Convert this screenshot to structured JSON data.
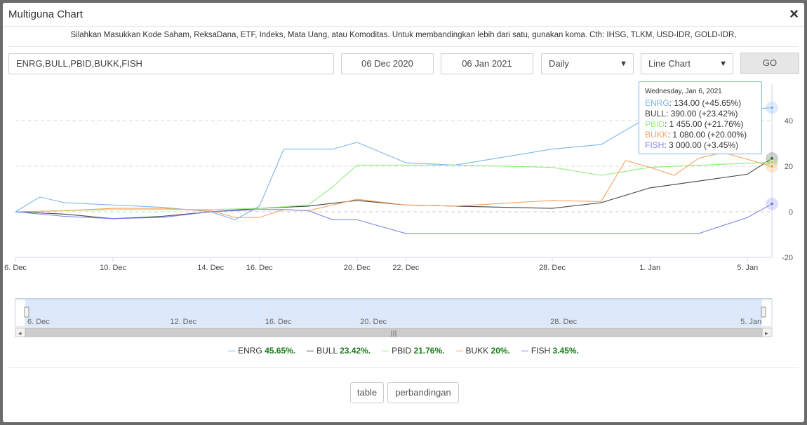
{
  "window": {
    "title": "Multiguna Chart",
    "close_icon": "×"
  },
  "instructions": "Silahkan Masukkan Kode Saham, ReksaDana, ETF, Indeks, Mata Uang, atau Komoditas. Untuk membandingkan lebih dari satu, gunakan koma. Cth: IHSG, TLKM, USD-IDR, GOLD-IDR,",
  "form": {
    "codes": "ENRG,BULL,PBID,BUKK,FISH",
    "from_date": "06 Dec 2020",
    "to_date": "06 Jan 2021",
    "period": "Daily",
    "chart_type": "Line Chart",
    "go_label": "GO"
  },
  "chart_data": {
    "type": "line",
    "x": [
      "2020-12-06",
      "2020-12-07",
      "2020-12-08",
      "2020-12-09",
      "2020-12-10",
      "2020-12-11",
      "2020-12-12",
      "2020-12-13",
      "2020-12-14",
      "2020-12-15",
      "2020-12-16",
      "2020-12-17",
      "2020-12-18",
      "2020-12-19",
      "2020-12-20",
      "2020-12-21",
      "2020-12-22",
      "2020-12-23",
      "2020-12-24",
      "2020-12-25",
      "2020-12-26",
      "2020-12-27",
      "2020-12-28",
      "2020-12-29",
      "2020-12-30",
      "2020-12-31",
      "2021-01-01",
      "2021-01-02",
      "2021-01-03",
      "2021-01-04",
      "2021-01-05",
      "2021-01-06"
    ],
    "x_ticks": [
      {
        "date": "2020-12-06",
        "label": "6. Dec"
      },
      {
        "date": "2020-12-10",
        "label": "10. Dec"
      },
      {
        "date": "2020-12-14",
        "label": "14. Dec"
      },
      {
        "date": "2020-12-16",
        "label": "16. Dec"
      },
      {
        "date": "2020-12-20",
        "label": "20. Dec"
      },
      {
        "date": "2020-12-22",
        "label": "22. Dec"
      },
      {
        "date": "2020-12-28",
        "label": "28. Dec"
      },
      {
        "date": "2021-01-01",
        "label": "1. Jan"
      },
      {
        "date": "2021-01-05",
        "label": "5. Jan"
      }
    ],
    "y_ticks": [
      40,
      20,
      0,
      -20
    ],
    "ylim": [
      -20,
      50
    ],
    "grid": true,
    "series": [
      {
        "name": "ENRG",
        "color": "#7cb5ec",
        "pct": "45.65%.",
        "points": [
          [
            "2020-12-06",
            0
          ],
          [
            "2020-12-07",
            6.5
          ],
          [
            "2020-12-08",
            4
          ],
          [
            "2020-12-10",
            3
          ],
          [
            "2020-12-12",
            2
          ],
          [
            "2020-12-14",
            0
          ],
          [
            "2020-12-15",
            -3.5
          ],
          [
            "2020-12-16",
            2.5
          ],
          [
            "2020-12-17",
            27.5
          ],
          [
            "2020-12-19",
            27.5
          ],
          [
            "2020-12-20",
            30.5
          ],
          [
            "2020-12-22",
            21.5
          ],
          [
            "2020-12-24",
            20.5
          ],
          [
            "2020-12-28",
            27.5
          ],
          [
            "2020-12-30",
            29.5
          ],
          [
            "2021-01-01",
            42
          ],
          [
            "2021-01-06",
            45.65
          ]
        ]
      },
      {
        "name": "BULL",
        "color": "#434348",
        "pct": "23.42%.",
        "points": [
          [
            "2020-12-06",
            0
          ],
          [
            "2020-12-08",
            -1
          ],
          [
            "2020-12-10",
            -3
          ],
          [
            "2020-12-12",
            -2
          ],
          [
            "2020-12-14",
            0
          ],
          [
            "2020-12-16",
            1.5
          ],
          [
            "2020-12-18",
            2.5
          ],
          [
            "2020-12-20",
            5
          ],
          [
            "2020-12-22",
            3
          ],
          [
            "2020-12-24",
            2.5
          ],
          [
            "2020-12-28",
            1.5
          ],
          [
            "2020-12-30",
            4
          ],
          [
            "2021-01-01",
            10.5
          ],
          [
            "2021-01-05",
            16.5
          ],
          [
            "2021-01-06",
            23.42
          ]
        ]
      },
      {
        "name": "PBID",
        "color": "#90ed7d",
        "pct": "21.76%.",
        "points": [
          [
            "2020-12-06",
            0
          ],
          [
            "2020-12-10",
            1
          ],
          [
            "2020-12-14",
            1
          ],
          [
            "2020-12-16",
            1.5
          ],
          [
            "2020-12-18",
            3
          ],
          [
            "2020-12-19",
            11
          ],
          [
            "2020-12-20",
            20.5
          ],
          [
            "2020-12-24",
            20.5
          ],
          [
            "2020-12-28",
            19.5
          ],
          [
            "2020-12-30",
            16
          ],
          [
            "2021-01-01",
            19.5
          ],
          [
            "2021-01-06",
            21.76
          ]
        ]
      },
      {
        "name": "BUKK",
        "color": "#f7a35c",
        "pct": "20%.",
        "points": [
          [
            "2020-12-06",
            0
          ],
          [
            "2020-12-08",
            0.5
          ],
          [
            "2020-12-10",
            1.5
          ],
          [
            "2020-12-12",
            1.5
          ],
          [
            "2020-12-14",
            0.5
          ],
          [
            "2020-12-15",
            -2.5
          ],
          [
            "2020-12-16",
            -2.5
          ],
          [
            "2020-12-17",
            1
          ],
          [
            "2020-12-18",
            0.5
          ],
          [
            "2020-12-20",
            5.5
          ],
          [
            "2020-12-22",
            3
          ],
          [
            "2020-12-24",
            2.5
          ],
          [
            "2020-12-28",
            5
          ],
          [
            "2020-12-30",
            4.5
          ],
          [
            "2020-12-31",
            22.5
          ],
          [
            "2021-01-01",
            19.5
          ],
          [
            "2021-01-02",
            16
          ],
          [
            "2021-01-03",
            23.5
          ],
          [
            "2021-01-04",
            26
          ],
          [
            "2021-01-06",
            20
          ]
        ]
      },
      {
        "name": "FISH",
        "color": "#8085e9",
        "pct": "3.45%.",
        "points": [
          [
            "2020-12-06",
            0
          ],
          [
            "2020-12-08",
            -2
          ],
          [
            "2020-12-10",
            -3
          ],
          [
            "2020-12-12",
            -2.5
          ],
          [
            "2020-12-14",
            0
          ],
          [
            "2020-12-16",
            1
          ],
          [
            "2020-12-17",
            1
          ],
          [
            "2020-12-18",
            0.5
          ],
          [
            "2020-12-19",
            -3.5
          ],
          [
            "2020-12-20",
            -3.5
          ],
          [
            "2020-12-22",
            -9.5
          ],
          [
            "2021-01-03",
            -9.5
          ],
          [
            "2021-01-05",
            -2.5
          ],
          [
            "2021-01-06",
            3.45
          ]
        ]
      }
    ]
  },
  "tooltip": {
    "date": "Wednesday, Jan 6, 2021",
    "rows": [
      {
        "name": "ENRG",
        "text": ": 134.00 (+45.65%)",
        "color": "#7cb5ec"
      },
      {
        "name": "BULL",
        "text": ": 390.00 (+23.42%)",
        "color": "#434348"
      },
      {
        "name": "PBID",
        "text": ": 1 455.00 (+21.76%)",
        "color": "#90ed7d"
      },
      {
        "name": "BUKK",
        "text": ": 1 080.00 (+20.00%)",
        "color": "#f7a35c"
      },
      {
        "name": "FISH",
        "text": ": 3 000.00 (+3.45%)",
        "color": "#8085e9"
      }
    ]
  },
  "navigator": {
    "ticks": [
      {
        "date": "2020-12-06",
        "label": "6. Dec"
      },
      {
        "date": "2020-12-12",
        "label": "12. Dec"
      },
      {
        "date": "2020-12-16",
        "label": "16. Dec"
      },
      {
        "date": "2020-12-20",
        "label": "20. Dec"
      },
      {
        "date": "2020-12-28",
        "label": "28. Dec"
      },
      {
        "date": "2021-01-05",
        "label": "5. Jan"
      }
    ]
  },
  "buttons": {
    "table": "table",
    "compare": "perbandingan"
  }
}
